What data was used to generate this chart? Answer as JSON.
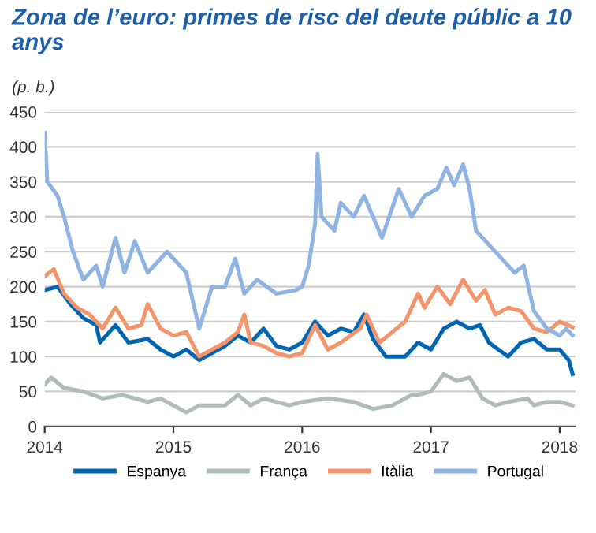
{
  "chart_data": {
    "type": "line",
    "title": "Zona de l’euro: primes de risc del deute públic a 10 anys",
    "ylabel": "(p. b.)",
    "xlim": [
      2014,
      2018.12
    ],
    "xticks": [
      2014,
      2015,
      2016,
      2017,
      2018
    ],
    "ylim": [
      0,
      450
    ],
    "yticks": [
      0,
      50,
      100,
      150,
      200,
      250,
      300,
      350,
      400,
      450
    ],
    "grid": "y",
    "legend": "bottom",
    "series": [
      {
        "name": "Espanya",
        "color": "#0066b3",
        "x": [
          2014,
          2014.1,
          2014.2,
          2014.3,
          2014.4,
          2014.43,
          2014.55,
          2014.65,
          2014.8,
          2014.9,
          2015.0,
          2015.1,
          2015.2,
          2015.3,
          2015.4,
          2015.5,
          2015.6,
          2015.7,
          2015.8,
          2015.9,
          2016.0,
          2016.1,
          2016.2,
          2016.3,
          2016.4,
          2016.48,
          2016.55,
          2016.65,
          2016.8,
          2016.9,
          2017.0,
          2017.1,
          2017.2,
          2017.3,
          2017.38,
          2017.45,
          2017.6,
          2017.7,
          2017.8,
          2017.9,
          2018.0,
          2018.07,
          2018.1
        ],
        "values": [
          195,
          200,
          175,
          155,
          145,
          120,
          145,
          120,
          125,
          110,
          100,
          110,
          95,
          105,
          115,
          130,
          120,
          140,
          115,
          110,
          120,
          150,
          130,
          140,
          135,
          160,
          125,
          100,
          100,
          120,
          110,
          140,
          150,
          140,
          145,
          120,
          100,
          120,
          125,
          110,
          110,
          95,
          75
        ]
      },
      {
        "name": "França",
        "color": "#b0bcbc",
        "x": [
          2014,
          2014.05,
          2014.15,
          2014.3,
          2014.45,
          2014.6,
          2014.8,
          2014.9,
          2015.0,
          2015.1,
          2015.2,
          2015.4,
          2015.5,
          2015.6,
          2015.7,
          2015.9,
          2016.0,
          2016.2,
          2016.4,
          2016.55,
          2016.7,
          2016.85,
          2016.9,
          2017.0,
          2017.1,
          2017.2,
          2017.3,
          2017.4,
          2017.5,
          2017.6,
          2017.75,
          2017.8,
          2017.9,
          2018.0,
          2018.1
        ],
        "values": [
          60,
          70,
          55,
          50,
          40,
          45,
          35,
          40,
          30,
          20,
          30,
          30,
          45,
          30,
          40,
          30,
          35,
          40,
          35,
          25,
          30,
          45,
          45,
          50,
          75,
          65,
          70,
          40,
          30,
          35,
          40,
          30,
          35,
          35,
          30
        ]
      },
      {
        "name": "Itàlia",
        "color": "#f4946a",
        "x": [
          2014,
          2014.07,
          2014.15,
          2014.25,
          2014.35,
          2014.45,
          2014.55,
          2014.65,
          2014.75,
          2014.8,
          2014.9,
          2015.0,
          2015.1,
          2015.2,
          2015.3,
          2015.4,
          2015.5,
          2015.55,
          2015.6,
          2015.7,
          2015.8,
          2015.9,
          2016.0,
          2016.1,
          2016.2,
          2016.3,
          2016.45,
          2016.5,
          2016.6,
          2016.7,
          2016.8,
          2016.9,
          2016.95,
          2017.05,
          2017.15,
          2017.25,
          2017.35,
          2017.42,
          2017.5,
          2017.6,
          2017.7,
          2017.8,
          2017.9,
          2018.0,
          2018.1
        ],
        "values": [
          215,
          225,
          190,
          170,
          160,
          140,
          170,
          140,
          145,
          175,
          140,
          130,
          135,
          100,
          110,
          120,
          135,
          160,
          120,
          115,
          105,
          100,
          105,
          145,
          110,
          120,
          140,
          160,
          120,
          135,
          150,
          190,
          170,
          200,
          175,
          210,
          180,
          195,
          160,
          170,
          165,
          140,
          135,
          150,
          142
        ]
      },
      {
        "name": "Portugal",
        "color": "#8fb4e3",
        "x": [
          2014,
          2014.02,
          2014.1,
          2014.15,
          2014.22,
          2014.3,
          2014.4,
          2014.45,
          2014.55,
          2014.62,
          2014.7,
          2014.8,
          2014.95,
          2015.1,
          2015.2,
          2015.3,
          2015.4,
          2015.48,
          2015.55,
          2015.65,
          2015.8,
          2015.95,
          2016.0,
          2016.05,
          2016.1,
          2016.12,
          2016.15,
          2016.25,
          2016.3,
          2016.4,
          2016.48,
          2016.55,
          2016.62,
          2016.75,
          2016.85,
          2016.95,
          2017.05,
          2017.12,
          2017.18,
          2017.25,
          2017.3,
          2017.35,
          2017.45,
          2017.55,
          2017.65,
          2017.72,
          2017.8,
          2017.9,
          2018.0,
          2018.05,
          2018.1
        ],
        "values": [
          420,
          350,
          330,
          300,
          250,
          210,
          230,
          200,
          270,
          220,
          265,
          220,
          250,
          220,
          140,
          200,
          200,
          240,
          190,
          210,
          190,
          195,
          200,
          230,
          290,
          390,
          300,
          280,
          320,
          300,
          330,
          300,
          270,
          340,
          300,
          330,
          340,
          370,
          345,
          375,
          340,
          280,
          260,
          240,
          220,
          230,
          165,
          140,
          130,
          140,
          130
        ]
      }
    ]
  }
}
